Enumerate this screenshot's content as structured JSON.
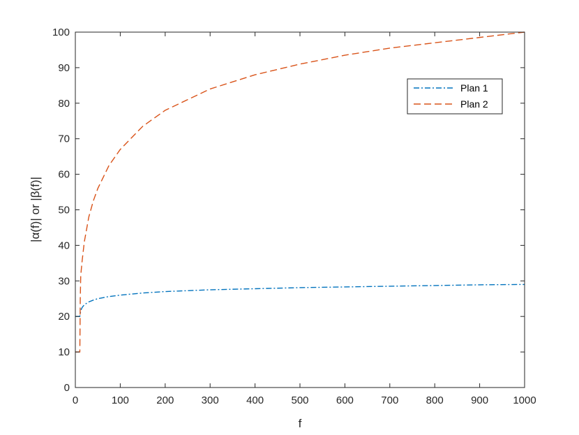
{
  "chart_data": {
    "type": "line",
    "xlabel": "f",
    "ylabel": "|α(f)| or |β(f)|",
    "xlim": [
      0,
      1000
    ],
    "ylim": [
      0,
      100
    ],
    "xticks": [
      0,
      100,
      200,
      300,
      400,
      500,
      600,
      700,
      800,
      900,
      1000
    ],
    "yticks": [
      0,
      10,
      20,
      30,
      40,
      50,
      60,
      70,
      80,
      90,
      100
    ],
    "grid": false,
    "legend_position": "top-right",
    "series": [
      {
        "name": "Plan 1",
        "color": "#0072BD",
        "dash": "dash-dot",
        "x": [
          0,
          10,
          12,
          15,
          20,
          30,
          40,
          50,
          75,
          100,
          150,
          200,
          300,
          400,
          500,
          600,
          700,
          800,
          900,
          1000
        ],
        "y": [
          20,
          20,
          21.6,
          22.5,
          23.3,
          24.1,
          24.6,
          25,
          25.6,
          26,
          26.6,
          27,
          27.5,
          27.8,
          28.1,
          28.3,
          28.5,
          28.7,
          28.9,
          29
        ]
      },
      {
        "name": "Plan 2",
        "color": "#D95319",
        "dash": "dashed",
        "x": [
          0,
          10,
          11,
          12,
          15,
          20,
          30,
          40,
          50,
          75,
          100,
          150,
          200,
          300,
          400,
          500,
          600,
          700,
          800,
          900,
          1000
        ],
        "y": [
          10,
          10,
          25,
          31.5,
          35.5,
          41,
          48,
          52.5,
          56,
          62.5,
          67,
          73.5,
          78,
          84,
          88,
          91,
          93.5,
          95.5,
          97,
          98.5,
          100
        ]
      }
    ]
  }
}
